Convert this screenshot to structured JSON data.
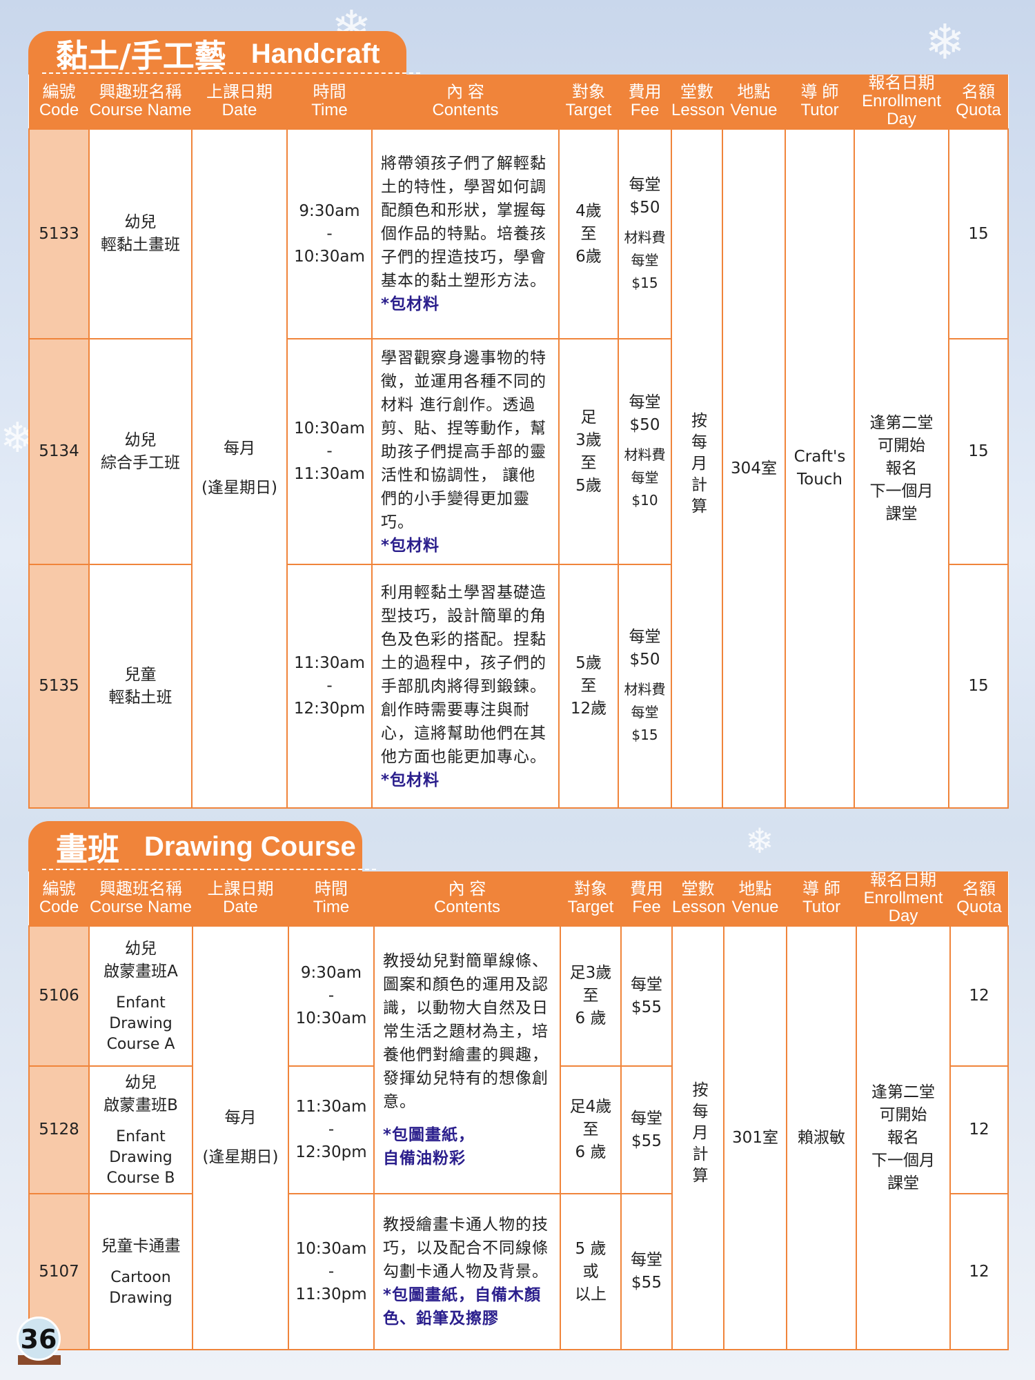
{
  "headers": {
    "code": [
      "編號",
      "Code"
    ],
    "name": [
      "興趣班名稱",
      "Course Name"
    ],
    "date": [
      "上課日期",
      "Date"
    ],
    "time": [
      "時間",
      "Time"
    ],
    "contents": [
      "內 容",
      "Contents"
    ],
    "target": [
      "對象",
      "Target"
    ],
    "fee": [
      "費用",
      "Fee"
    ],
    "lesson": [
      "堂數",
      "Lesson"
    ],
    "venue": [
      "地點",
      "Venue"
    ],
    "tutor": [
      "導 師",
      "Tutor"
    ],
    "enroll": [
      "報名日期",
      "Enrollment Day"
    ],
    "quota": [
      "名額",
      "Quota"
    ]
  },
  "handcraft": {
    "title_zh": "黏土/手工藝",
    "title_en": "Handcraft",
    "date": [
      "每月",
      "(逢星期日)"
    ],
    "lesson": "按每月計算",
    "venue": "304室",
    "tutor": [
      "Craft's",
      "Touch"
    ],
    "enroll": [
      "逢第二堂",
      "可開始",
      "報名",
      "下一個月",
      "課堂"
    ],
    "rows": [
      {
        "code": "5133",
        "name": [
          "幼兒",
          "輕黏土畫班"
        ],
        "time": [
          "9:30am",
          "-",
          "10:30am"
        ],
        "content": "將帶領孩子們了解輕黏土的特性，學習如何調配顏色和形狀，掌握每個作品的特點。培養孩子們的捏造技巧，學會基本的黏土塑形方法。",
        "note": "*包材料",
        "target": [
          "4歲",
          "至",
          "6歲"
        ],
        "fee": [
          "每堂",
          "$50"
        ],
        "material": [
          "材料費",
          "每堂",
          "$15"
        ],
        "quota": "15"
      },
      {
        "code": "5134",
        "name": [
          "幼兒",
          "綜合手工班"
        ],
        "time": [
          "10:30am",
          "-",
          "11:30am"
        ],
        "content": "學習觀察身邊事物的特徵，並運用各種不同的材料 進行創作。透過剪、貼、捏等動作，幫助孩子們提高手部的靈活性和協調性， 讓他們的小手變得更加靈巧。",
        "note": "*包材料",
        "target": [
          "足",
          "3歲",
          "至",
          "5歲"
        ],
        "fee": [
          "每堂",
          "$50"
        ],
        "material": [
          "材料費",
          "每堂",
          "$10"
        ],
        "quota": "15"
      },
      {
        "code": "5135",
        "name": [
          "兒童",
          "輕黏土班"
        ],
        "time": [
          "11:30am",
          "-",
          "12:30pm"
        ],
        "content": "利用輕黏土學習基礎造型技巧，設計簡單的角色及色彩的搭配。捏黏土的過程中，孩子們的手部肌肉將得到鍛鍊。創作時需要專注與耐心，這將幫助他們在其他方面也能更加專心。",
        "note": "*包材料",
        "target": [
          "5歲",
          "至",
          "12歲"
        ],
        "fee": [
          "每堂",
          "$50"
        ],
        "material": [
          "材料費",
          "每堂",
          "$15"
        ],
        "quota": "15"
      }
    ]
  },
  "drawing": {
    "title_zh": "畫班",
    "title_en": "Drawing Course",
    "date": [
      "每月",
      "(逢星期日)"
    ],
    "lesson": "按每月計算",
    "venue": "301室",
    "tutor": [
      "賴淑敏"
    ],
    "enroll": [
      "逢第二堂",
      "可開始",
      "報名",
      "下一個月",
      "課堂"
    ],
    "shared_content": "教授幼兒對簡單線條、圖案和顏色的運用及認識，以動物大自然及日常生活之題材為主，培養他們對繪畫的興趣，發揮幼兒特有的想像創意。",
    "shared_note": [
      "*包圖畫紙，",
      "自備油粉彩"
    ],
    "rows": [
      {
        "code": "5106",
        "name": [
          "幼兒",
          "啟蒙畫班A"
        ],
        "name_en": [
          "Enfant",
          "Drawing",
          "Course A"
        ],
        "time": [
          "9:30am",
          "-",
          "10:30am"
        ],
        "target": [
          "足3歲",
          "至",
          "6 歲"
        ],
        "fee": [
          "每堂",
          "$55"
        ],
        "quota": "12"
      },
      {
        "code": "5128",
        "name": [
          "幼兒",
          "啟蒙畫班B"
        ],
        "name_en": [
          "Enfant",
          "Drawing",
          "Course B"
        ],
        "time": [
          "11:30am",
          "-",
          "12:30pm"
        ],
        "target": [
          "足4歲",
          "至",
          "6 歲"
        ],
        "fee": [
          "每堂",
          "$55"
        ],
        "quota": "12"
      },
      {
        "code": "5107",
        "name": [
          "兒童卡通畫"
        ],
        "name_en": [
          "Cartoon",
          "Drawing"
        ],
        "time": [
          "10:30am",
          "-",
          "11:30pm"
        ],
        "content": "教授繪畫卡通人物的技巧，以及配合不同線條勾劃卡通人物及背景。",
        "note": "*包圖畫紙，自備木顏色、鉛筆及擦膠",
        "target": [
          "5 歲",
          "或",
          "以上"
        ],
        "fee": [
          "每堂",
          "$55"
        ],
        "quota": "12"
      }
    ]
  },
  "page_number": "36",
  "colors": {
    "orange": "#f0843a",
    "code_bg": "#f8c9a8",
    "note": "#2a1e8c"
  }
}
